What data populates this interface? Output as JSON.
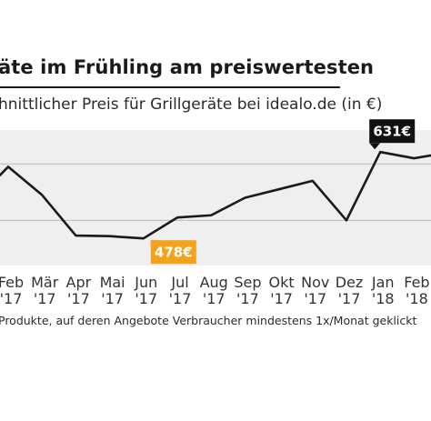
{
  "chart_data": {
    "type": "line",
    "title": "äte im Frühling am preiswertesten",
    "subtitle": "hnittlicher Preis für Grillgeräte bei idealo.de (in €)",
    "footnote": "Produkte, auf deren Angebote Verbraucher mindestens 1x/Monat geklickt",
    "categories": [
      {
        "month": "Feb",
        "year": "'17"
      },
      {
        "month": "Mär",
        "year": "'17"
      },
      {
        "month": "Apr",
        "year": "'17"
      },
      {
        "month": "Mai",
        "year": "'17"
      },
      {
        "month": "Jun",
        "year": "'17"
      },
      {
        "month": "Jul",
        "year": "'17"
      },
      {
        "month": "Aug",
        "year": "'17"
      },
      {
        "month": "Sep",
        "year": "'17"
      },
      {
        "month": "Okt",
        "year": "'17"
      },
      {
        "month": "Nov",
        "year": "'17"
      },
      {
        "month": "Dez",
        "year": "'17"
      },
      {
        "month": "Jan",
        "year": "'18"
      },
      {
        "month": "Feb",
        "year": "'18"
      }
    ],
    "values": [
      605,
      555,
      483,
      482,
      478,
      515,
      519,
      550,
      565,
      580,
      510,
      631,
      620
    ],
    "lead_in_value": 590,
    "trail_value": 625,
    "ylim": [
      430,
      670
    ],
    "gridlines": [
      510,
      610
    ],
    "grid": true,
    "annotations": [
      {
        "label": "478€",
        "index": 4,
        "color": "#f2a31b",
        "placement": "below"
      },
      {
        "label": "631€",
        "index": 11,
        "color": "#111111",
        "placement": "above"
      }
    ],
    "line_color": "#1a1a1a",
    "background_color": "#efefef"
  }
}
